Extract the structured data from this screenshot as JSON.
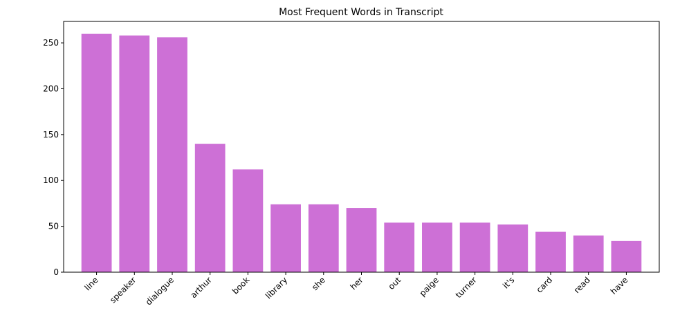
{
  "chart_data": {
    "type": "bar",
    "title": "Most Frequent Words in Transcript",
    "categories": [
      "line",
      "speaker",
      "dialogue",
      "arthur",
      "book",
      "library",
      "she",
      "her",
      "out",
      "paige",
      "turner",
      "it's",
      "card",
      "read",
      "have"
    ],
    "values": [
      260,
      258,
      256,
      140,
      112,
      74,
      74,
      70,
      54,
      54,
      54,
      52,
      44,
      40,
      34
    ],
    "color": "#cd70d6",
    "ylim": [
      0,
      273.4
    ],
    "yticks": [
      0,
      50,
      100,
      150,
      200,
      250
    ],
    "grid": false
  }
}
